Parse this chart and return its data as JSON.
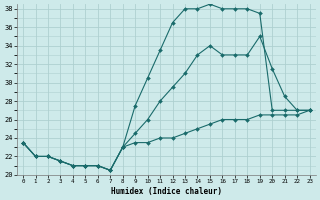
{
  "xlabel": "Humidex (Indice chaleur)",
  "bg_color": "#ceeaea",
  "grid_color": "#aed0d0",
  "line_color": "#1a6b6b",
  "xlim": [
    -0.5,
    23.5
  ],
  "ylim": [
    20,
    38.5
  ],
  "yticks": [
    20,
    22,
    24,
    26,
    28,
    30,
    32,
    34,
    36,
    38
  ],
  "xticks": [
    0,
    1,
    2,
    3,
    4,
    5,
    6,
    7,
    8,
    9,
    10,
    11,
    12,
    13,
    14,
    15,
    16,
    17,
    18,
    19,
    20,
    21,
    22,
    23
  ],
  "line1_x": [
    0,
    1,
    2,
    3,
    4,
    5,
    6,
    7,
    8,
    9,
    10,
    11,
    12,
    13,
    14,
    15,
    16,
    17,
    18,
    19,
    20,
    21,
    22,
    23
  ],
  "line1_y": [
    23.5,
    22,
    22,
    21.5,
    21,
    21,
    21,
    20.5,
    23,
    27.5,
    30.5,
    33.5,
    36.5,
    38,
    38,
    38.5,
    38,
    38,
    38,
    37.5,
    27,
    27,
    27,
    27
  ],
  "line2_x": [
    0,
    1,
    2,
    3,
    4,
    5,
    6,
    7,
    8,
    9,
    10,
    11,
    12,
    13,
    14,
    15,
    16,
    17,
    18,
    19,
    20,
    21,
    22,
    23
  ],
  "line2_y": [
    23.5,
    22,
    22,
    21.5,
    21,
    21,
    21,
    20.5,
    23,
    24.5,
    26,
    28,
    29.5,
    31,
    33,
    34,
    33,
    33,
    33,
    35,
    31.5,
    28.5,
    27,
    27
  ],
  "line3_x": [
    0,
    1,
    2,
    3,
    4,
    5,
    6,
    7,
    8,
    9,
    10,
    11,
    12,
    13,
    14,
    15,
    16,
    17,
    18,
    19,
    20,
    21,
    22,
    23
  ],
  "line3_y": [
    23.5,
    22,
    22,
    21.5,
    21,
    21,
    21,
    20.5,
    23,
    23.5,
    23.5,
    24,
    24,
    24.5,
    25,
    25.5,
    26,
    26,
    26,
    26.5,
    26.5,
    26.5,
    26.5,
    27
  ]
}
